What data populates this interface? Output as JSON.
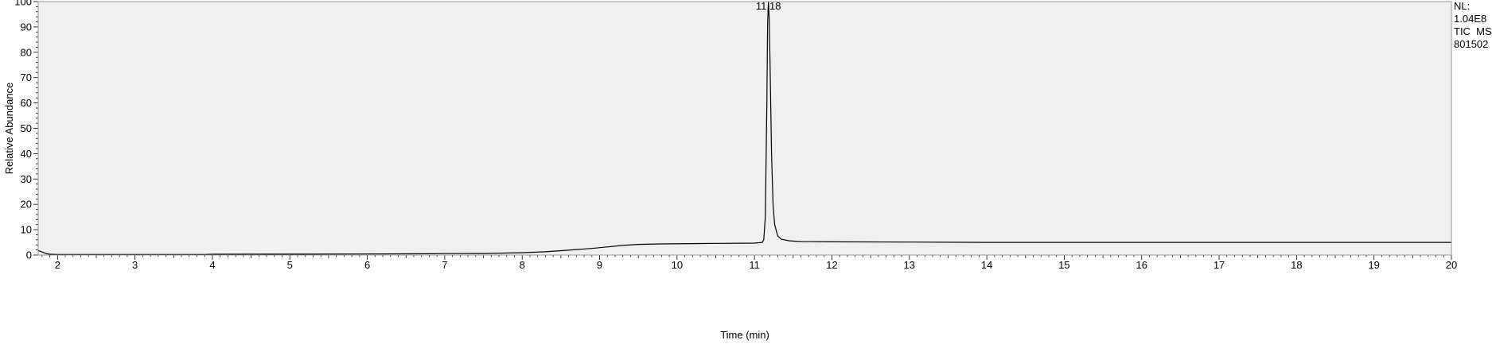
{
  "chart_data": {
    "type": "line",
    "title": "",
    "xlabel": "Time (min)",
    "ylabel": "Relative Abundance",
    "xlim": [
      1.75,
      20
    ],
    "ylim": [
      0,
      100
    ],
    "x_ticks": [
      2,
      3,
      4,
      5,
      6,
      7,
      8,
      9,
      10,
      11,
      12,
      13,
      14,
      15,
      16,
      17,
      18,
      19,
      20
    ],
    "y_ticks": [
      0,
      10,
      20,
      30,
      40,
      50,
      60,
      70,
      80,
      90,
      100
    ],
    "grid": false,
    "legend": "none",
    "background_color": "#f0f0f0",
    "line_color": "#000000",
    "peak_label": "11.18",
    "info_lines": [
      "NL:",
      "1.04E8",
      "TIC  MS",
      "801502"
    ],
    "series": [
      {
        "x": [
          1.75,
          1.8,
          1.85,
          1.9,
          2.0,
          3.0,
          3.9,
          4.0,
          5.0,
          6.0,
          6.8,
          7.0,
          7.5,
          8.0,
          8.3,
          8.6,
          8.9,
          9.1,
          9.3,
          9.5,
          9.8,
          10.2,
          10.6,
          11.0,
          11.1,
          11.12,
          11.14,
          11.16,
          11.17,
          11.18,
          11.19,
          11.2,
          11.22,
          11.24,
          11.26,
          11.3,
          11.35,
          11.45,
          11.6,
          12.0,
          13.0,
          14.0,
          15.0,
          16.0,
          17.0,
          18.0,
          19.0,
          20.0
        ],
        "y": [
          1.8,
          1.2,
          0.6,
          0.3,
          0.2,
          0.2,
          0.2,
          0.3,
          0.35,
          0.4,
          0.5,
          0.55,
          0.6,
          0.9,
          1.3,
          1.9,
          2.6,
          3.2,
          3.8,
          4.2,
          4.4,
          4.5,
          4.6,
          4.7,
          5.0,
          6.0,
          15.0,
          60.0,
          92.0,
          100.0,
          93.0,
          78.0,
          40.0,
          20.0,
          12.0,
          7.5,
          6.2,
          5.6,
          5.3,
          5.2,
          5.1,
          5.0,
          5.0,
          5.0,
          5.0,
          5.0,
          5.0,
          5.0
        ]
      }
    ]
  }
}
